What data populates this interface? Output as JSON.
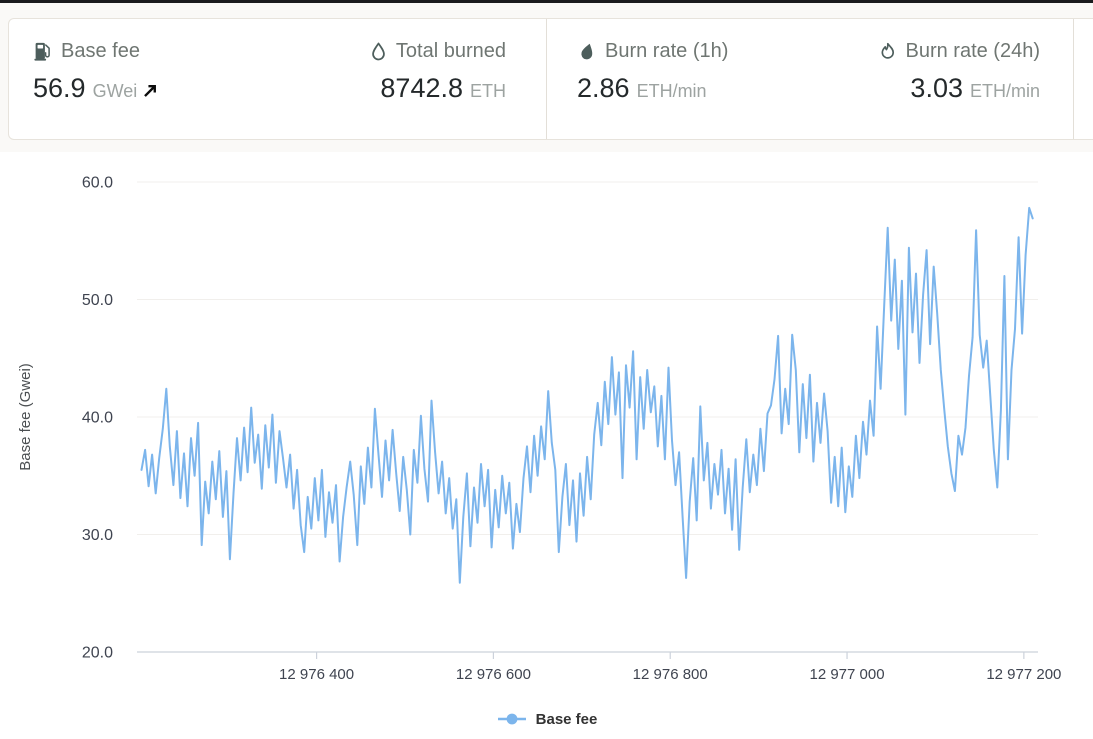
{
  "stats_bar": {
    "items": [
      {
        "label": "Base fee",
        "value": "56.9",
        "unit": "GWei",
        "icon": "gas-pump-icon",
        "trend": "up"
      },
      {
        "label": "Total burned",
        "value": "8742.8",
        "unit": "ETH",
        "icon": "droplet-icon"
      },
      {
        "label": "Burn rate (1h)",
        "value": "2.86",
        "unit": "ETH/min",
        "icon": "flame-droplet-icon"
      },
      {
        "label": "Burn rate (24h)",
        "value": "3.03",
        "unit": "ETH/min",
        "icon": "flame-icon"
      }
    ]
  },
  "chart_data": {
    "type": "line",
    "title": "",
    "xlabel": "",
    "ylabel": "Base fee (Gwei)",
    "legend_position": "bottom",
    "grid": true,
    "xlim": [
      12976198,
      12977216
    ],
    "ylim": [
      20,
      62
    ],
    "x_ticks": [
      {
        "value": 12976400,
        "label": "12 976 400"
      },
      {
        "value": 12976600,
        "label": "12 976 600"
      },
      {
        "value": 12976800,
        "label": "12 976 800"
      },
      {
        "value": 12977000,
        "label": "12 977 000"
      },
      {
        "value": 12977200,
        "label": "12 977 200"
      }
    ],
    "y_ticks": [
      {
        "value": 20,
        "label": "20.0"
      },
      {
        "value": 30,
        "label": "30.0"
      },
      {
        "value": 40,
        "label": "40.0"
      },
      {
        "value": 50,
        "label": "50.0"
      },
      {
        "value": 60,
        "label": "60.0"
      }
    ],
    "colors": {
      "series": "#7cb5ec",
      "grid": "#f1efec",
      "axis": "#ccd2db",
      "tick_text": "#3f4450",
      "axis_title": "#4b4f52"
    },
    "series": [
      {
        "name": "Base fee",
        "color": "#7cb5ec",
        "unit": "Gwei",
        "start_block": 12976202,
        "block_step": 4,
        "values": [
          35.5,
          37.2,
          34.1,
          36.8,
          33.5,
          36.5,
          39.0,
          42.4,
          37.5,
          34.2,
          38.8,
          33.1,
          36.9,
          32.4,
          38.2,
          35.0,
          39.5,
          29.1,
          34.5,
          31.8,
          36.2,
          33.0,
          37.1,
          31.5,
          35.4,
          27.9,
          33.5,
          38.2,
          34.6,
          39.1,
          35.3,
          40.8,
          36.1,
          38.5,
          33.9,
          39.3,
          35.7,
          40.2,
          34.4,
          38.8,
          36.5,
          34.0,
          36.8,
          32.2,
          35.5,
          30.8,
          28.5,
          33.2,
          30.5,
          34.8,
          31.2,
          35.5,
          29.8,
          33.6,
          31.0,
          34.2,
          27.7,
          31.5,
          34.0,
          36.2,
          33.4,
          29.1,
          35.8,
          32.6,
          37.4,
          34.0,
          40.7,
          36.8,
          33.2,
          38.0,
          34.6,
          38.9,
          35.2,
          32.0,
          36.6,
          33.8,
          30.0,
          37.2,
          34.4,
          40.1,
          35.6,
          32.8,
          41.4,
          37.0,
          33.5,
          36.2,
          31.8,
          34.8,
          30.5,
          33.0,
          25.9,
          31.5,
          35.2,
          29.0,
          34.0,
          31.0,
          36.0,
          32.4,
          35.5,
          28.9,
          33.8,
          30.6,
          35.0,
          31.8,
          34.4,
          28.8,
          32.6,
          30.2,
          34.8,
          37.5,
          33.6,
          38.4,
          35.0,
          39.2,
          36.4,
          42.2,
          37.8,
          35.5,
          28.5,
          33.2,
          36.0,
          30.8,
          34.6,
          29.4,
          35.2,
          31.6,
          36.6,
          33.0,
          38.5,
          41.2,
          37.6,
          43.0,
          39.4,
          45.1,
          40.2,
          43.8,
          34.8,
          44.4,
          40.8,
          45.6,
          36.4,
          43.4,
          39.0,
          44.0,
          40.4,
          42.6,
          37.5,
          41.8,
          36.4,
          44.2,
          38.0,
          34.2,
          37.0,
          31.5,
          26.3,
          32.8,
          36.5,
          31.2,
          40.9,
          34.6,
          37.8,
          32.2,
          36.0,
          33.4,
          37.2,
          31.8,
          35.6,
          30.4,
          36.4,
          28.7,
          34.0,
          38.1,
          33.6,
          36.8,
          34.2,
          39.0,
          35.4,
          40.3,
          41.0,
          43.2,
          46.9,
          38.6,
          42.4,
          39.4,
          47.0,
          44.0,
          37.0,
          42.8,
          38.2,
          43.6,
          36.2,
          41.2,
          37.8,
          42.0,
          38.8,
          32.7,
          36.6,
          32.4,
          37.4,
          31.9,
          35.8,
          33.2,
          38.4,
          34.8,
          39.6,
          36.8,
          41.4,
          38.4,
          47.7,
          42.4,
          49.5,
          56.1,
          48.2,
          53.4,
          45.8,
          51.6,
          40.2,
          54.4,
          47.2,
          52.2,
          44.6,
          50.4,
          54.2,
          46.2,
          52.8,
          48.8,
          44.0,
          40.6,
          37.5,
          35.2,
          33.7,
          38.4,
          36.8,
          39.1,
          43.5,
          46.8,
          55.9,
          47.0,
          44.2,
          46.5,
          41.8,
          37.2,
          34.0,
          40.6,
          52.0,
          36.4,
          44.0,
          47.5,
          55.3,
          47.1,
          53.8,
          57.8,
          56.9
        ]
      }
    ]
  }
}
